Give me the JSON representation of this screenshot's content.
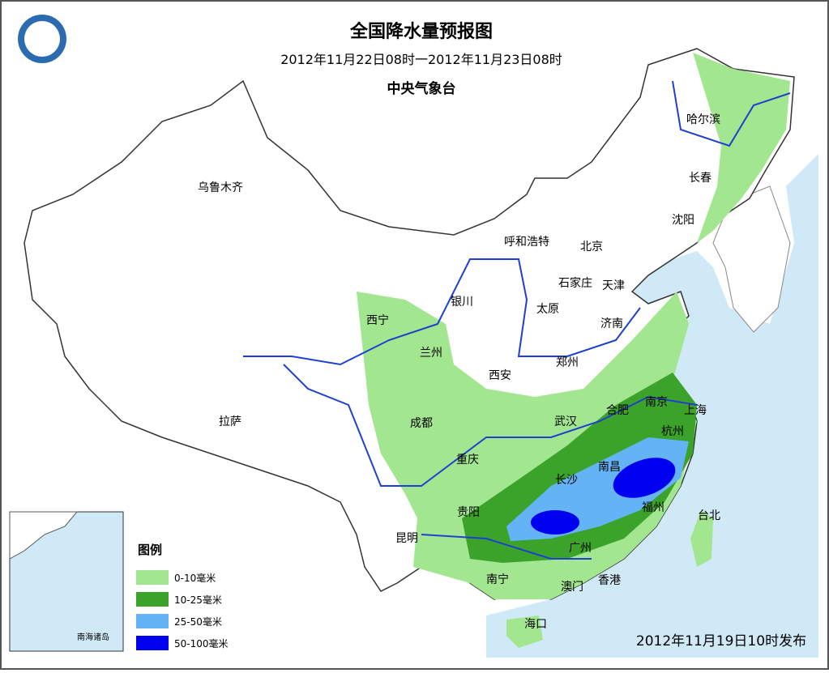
{
  "header": {
    "title": "全国降水量预报图",
    "subtitle": "2012年11月22日08时一2012年11月23日08时",
    "issuer": "中央气象台"
  },
  "cities": [
    "哈尔滨",
    "长春",
    "沈阳",
    "乌鲁木齐",
    "呼和浩特",
    "北京",
    "天津",
    "石家庄",
    "太原",
    "银川",
    "济南",
    "西宁",
    "兰州",
    "郑州",
    "西安",
    "拉萨",
    "成都",
    "南京",
    "合肥",
    "上海",
    "武汉",
    "杭州",
    "重庆",
    "南昌",
    "长沙",
    "贵阳",
    "福州",
    "台北",
    "昆明",
    "广州",
    "南宁",
    "澳门",
    "香港",
    "海口"
  ],
  "legend": {
    "title": "图例",
    "items": [
      {
        "label": "0-10毫米",
        "color": "#a3e690"
      },
      {
        "label": "10-25毫米",
        "color": "#3ba32a"
      },
      {
        "label": "25-50毫米",
        "color": "#63b3f5"
      },
      {
        "label": "50-100毫米",
        "color": "#0000f0"
      }
    ]
  },
  "inset": {
    "label": "南海诸岛"
  },
  "footer": {
    "issued": "2012年11月19日10时发布"
  }
}
